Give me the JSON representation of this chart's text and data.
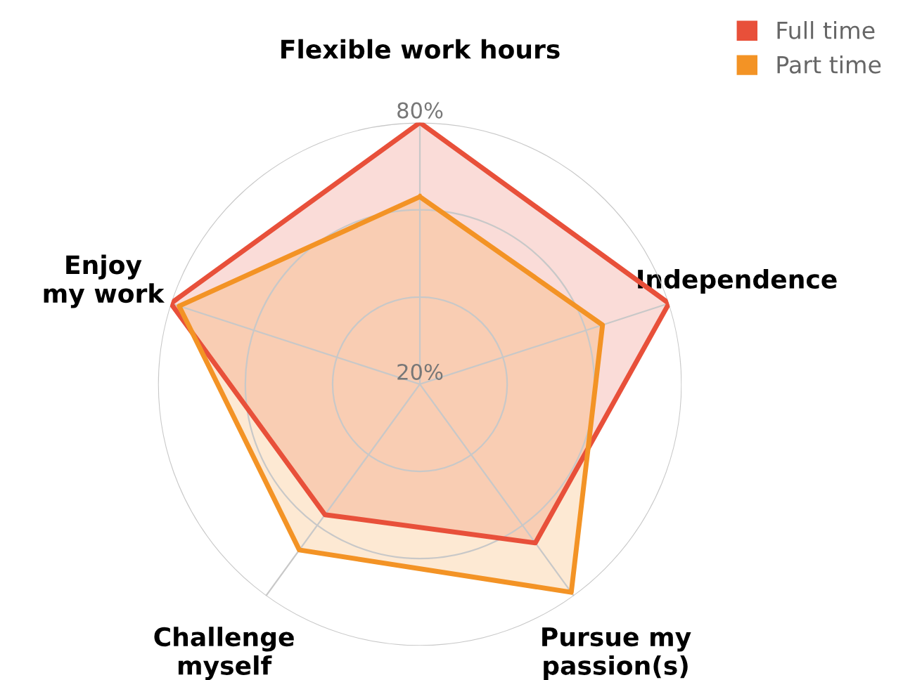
{
  "chart_data": {
    "type": "radar",
    "categories": [
      "Flexible work hours",
      "Independence",
      "Pursue my\npassion(s)",
      "Challenge\nmyself",
      "Enjoy\nmy work"
    ],
    "series": [
      {
        "name": "Full time",
        "color": "#e8503a",
        "values": [
          80,
          80,
          65,
          57,
          80
        ]
      },
      {
        "name": "Part time",
        "color": "#f39325",
        "values": [
          63,
          64,
          79,
          67,
          78
        ]
      }
    ],
    "ylim": [
      20,
      80
    ],
    "yticks": [
      {
        "value": 20,
        "label": "20%"
      },
      {
        "value": 80,
        "label": "80%"
      }
    ],
    "grid": true,
    "legend": "top right",
    "marker": "none",
    "line_style": "solid"
  }
}
